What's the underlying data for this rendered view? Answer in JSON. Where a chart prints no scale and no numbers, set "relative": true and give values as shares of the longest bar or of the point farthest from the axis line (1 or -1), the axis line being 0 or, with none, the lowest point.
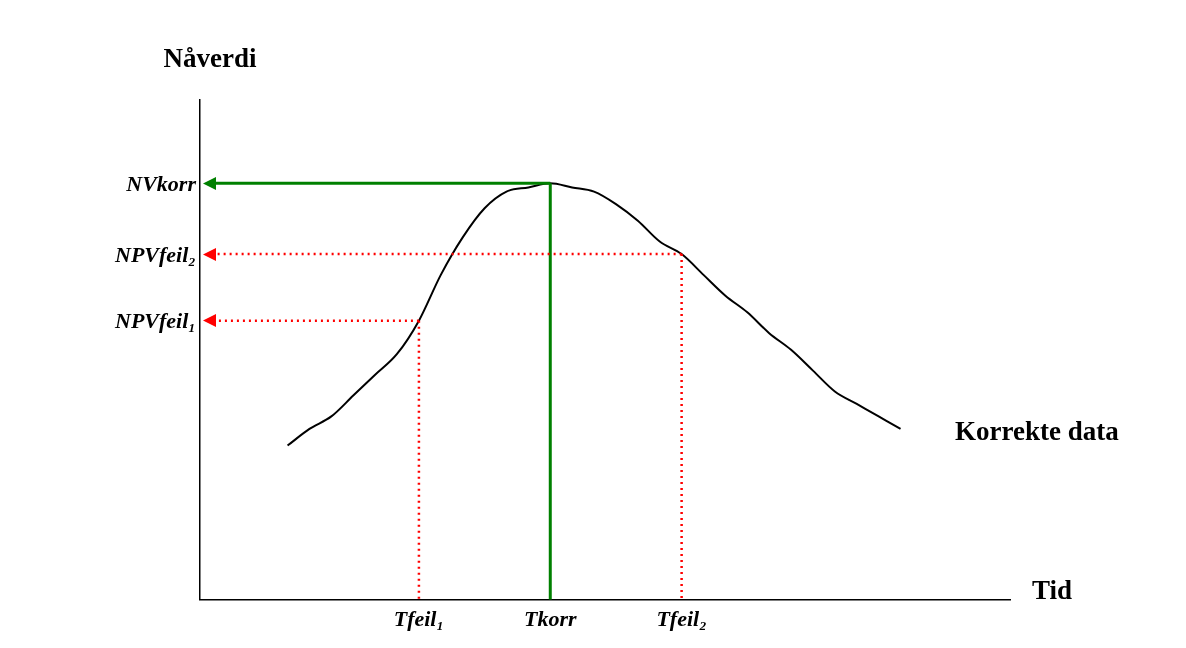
{
  "chart_data": {
    "type": "line",
    "relative": true,
    "xlabel": "Tid",
    "ylabel": "Nåverdi",
    "legend": false,
    "grid": false,
    "marker": "none",
    "categories": [
      null,
      null,
      null,
      null,
      null,
      null,
      null,
      null,
      null,
      null,
      "Tfeil₁",
      null,
      null,
      null,
      null,
      null,
      "Tkorr",
      null,
      null,
      null,
      null,
      null,
      "Tfeil₂",
      null,
      null,
      null,
      null,
      null,
      null,
      null,
      null,
      null,
      null,
      null,
      null,
      null,
      null,
      null
    ],
    "series": [
      {
        "name": "Korrekte data",
        "color": "#000000",
        "values": [
          null,
          null,
          null,
          null,
          0.37,
          0.41,
          0.44,
          0.49,
          0.54,
          0.59,
          0.67,
          0.78,
          0.87,
          0.94,
          0.98,
          0.99,
          1,
          0.99,
          0.98,
          0.95,
          0.91,
          0.86,
          0.83,
          0.78,
          0.73,
          0.69,
          0.64,
          0.6,
          0.55,
          0.5,
          0.47,
          0.44,
          0.41,
          null,
          null,
          null,
          null,
          null
        ]
      }
    ],
    "ref_lines": [
      {
        "axis": "y",
        "value": 1,
        "label": "NVkorr",
        "color": "#008000",
        "line_style": "solid"
      },
      {
        "axis": "y",
        "value": 0.83,
        "label": "NPVfeil₂",
        "color": "#ff0000",
        "line_style": "dotted"
      },
      {
        "axis": "y",
        "value": 0.67,
        "label": "NPVfeil₁",
        "color": "#ff0000",
        "line_style": "dotted"
      }
    ]
  }
}
